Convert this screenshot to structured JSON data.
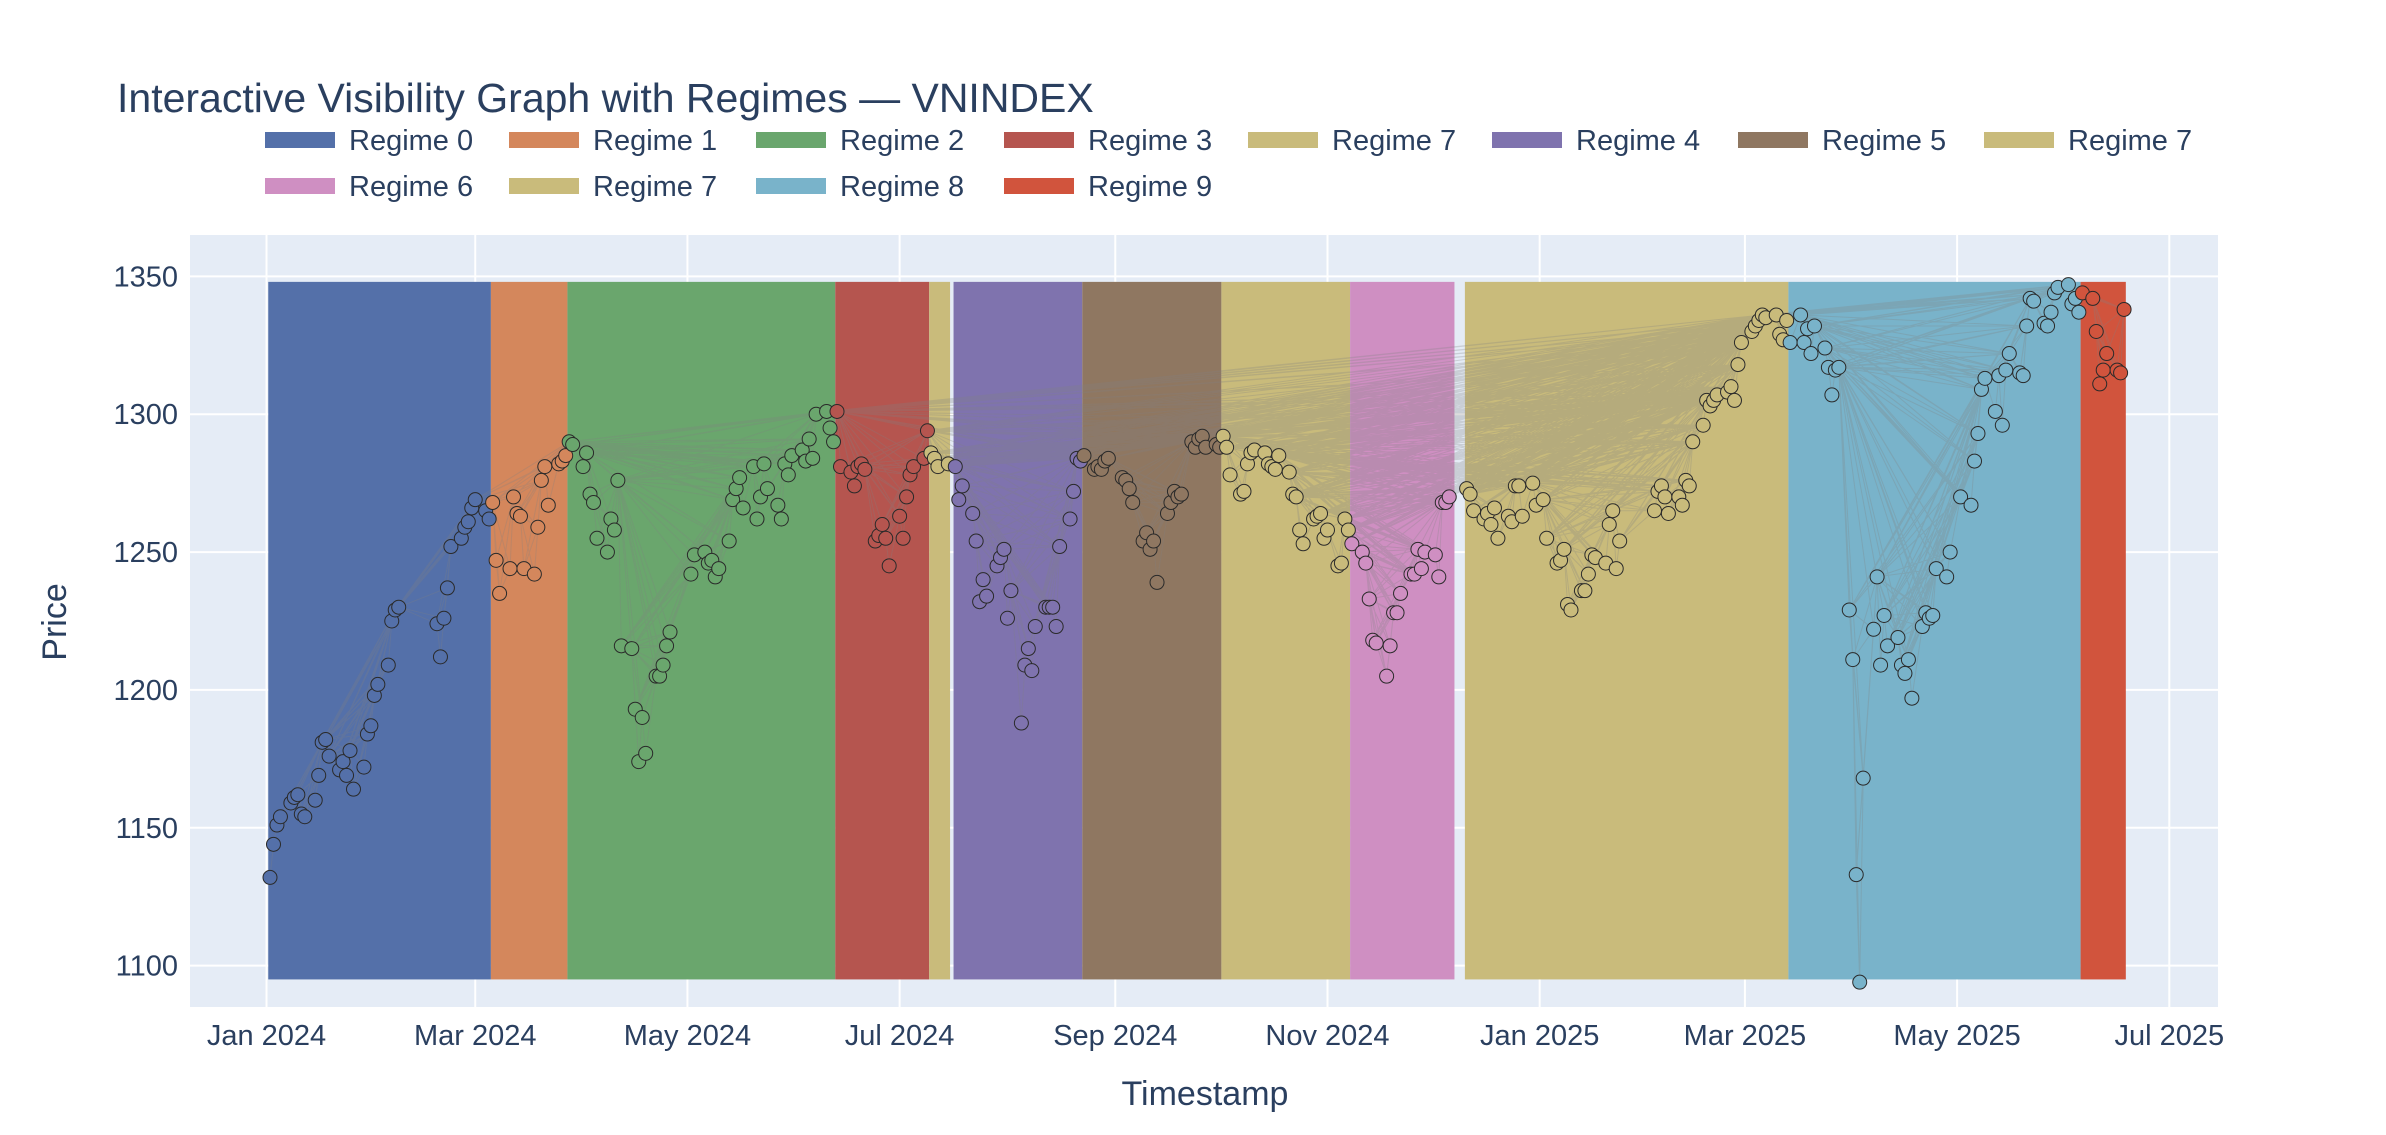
{
  "chart_data": {
    "type": "scatter",
    "title": "Interactive Visibility Graph with Regimes — VNINDEX",
    "xlabel": "Timestamp",
    "ylabel": "Price",
    "xlim": [
      "2023-12-10",
      "2025-07-15"
    ],
    "ylim": [
      1085,
      1365
    ],
    "x_ticks": [
      "2024-01-01",
      "2024-03-01",
      "2024-05-01",
      "2024-07-01",
      "2024-09-01",
      "2024-11-01",
      "2025-01-01",
      "2025-03-01",
      "2025-05-01",
      "2025-07-01"
    ],
    "x_tick_labels": [
      "Jan 2024",
      "Mar 2024",
      "May 2024",
      "Jul 2024",
      "Sep 2024",
      "Nov 2024",
      "Jan 2025",
      "Mar 2025",
      "May 2025",
      "Jul 2025"
    ],
    "y_ticks": [
      1100,
      1150,
      1200,
      1250,
      1300,
      1350
    ],
    "band_range": [
      1095,
      1348
    ],
    "legend_position": "top",
    "grid": true,
    "colors": {
      "plot_bg": "#e5ecf6",
      "grid": "#ffffff",
      "text": "#2a3f5f",
      "edge": "#808080",
      "marker_outline": "#2a2a2a"
    },
    "regimes": [
      {
        "name": "Regime 0",
        "color": "#5470a9",
        "start": "2024-01-02",
        "end": "2024-03-05"
      },
      {
        "name": "Regime 1",
        "color": "#d4875c",
        "start": "2024-03-06",
        "end": "2024-03-27"
      },
      {
        "name": "Regime 2",
        "color": "#6aa66d",
        "start": "2024-03-28",
        "end": "2024-06-12"
      },
      {
        "name": "Regime 3",
        "color": "#b5554f",
        "start": "2024-06-13",
        "end": "2024-07-09"
      },
      {
        "name": "Regime 7",
        "color": "#c9bb7b",
        "start": "2024-07-10",
        "end": "2024-07-15"
      },
      {
        "name": "Regime 4",
        "color": "#7f73ae",
        "start": "2024-07-17",
        "end": "2024-08-22"
      },
      {
        "name": "Regime 5",
        "color": "#8f7761",
        "start": "2024-08-23",
        "end": "2024-10-01"
      },
      {
        "name": "Regime 7",
        "color": "#c9bb7b",
        "start": "2024-10-02",
        "end": "2024-11-07"
      },
      {
        "name": "Regime 6",
        "color": "#cf8fc2",
        "start": "2024-11-08",
        "end": "2024-12-07"
      },
      {
        "name": "Regime 7",
        "color": "#c9bb7b",
        "start": "2024-12-11",
        "end": "2025-03-13"
      },
      {
        "name": "Regime 8",
        "color": "#79b3ca",
        "start": "2025-03-14",
        "end": "2025-06-05"
      },
      {
        "name": "Regime 9",
        "color": "#d1543d",
        "start": "2025-06-06",
        "end": "2025-06-18"
      }
    ],
    "series": [
      {
        "name": "Regime 0",
        "color": "#5470a9",
        "x": [
          "2024-01-02",
          "2024-01-03",
          "2024-01-04",
          "2024-01-05",
          "2024-01-08",
          "2024-01-09",
          "2024-01-10",
          "2024-01-11",
          "2024-01-12",
          "2024-01-15",
          "2024-01-16",
          "2024-01-17",
          "2024-01-18",
          "2024-01-19",
          "2024-01-22",
          "2024-01-23",
          "2024-01-24",
          "2024-01-25",
          "2024-01-26",
          "2024-01-29",
          "2024-01-30",
          "2024-01-31",
          "2024-02-01",
          "2024-02-02",
          "2024-02-05",
          "2024-02-06",
          "2024-02-07",
          "2024-02-08",
          "2024-02-19",
          "2024-02-20",
          "2024-02-21",
          "2024-02-22",
          "2024-02-23",
          "2024-02-26",
          "2024-02-27",
          "2024-02-28",
          "2024-02-29",
          "2024-03-01",
          "2024-03-04",
          "2024-03-05"
        ],
        "y": [
          1132,
          1144,
          1151,
          1154,
          1159,
          1161,
          1162,
          1155,
          1154,
          1160,
          1169,
          1181,
          1182,
          1176,
          1171,
          1174,
          1169,
          1178,
          1164,
          1172,
          1184,
          1187,
          1198,
          1202,
          1209,
          1225,
          1229,
          1230,
          1224,
          1212,
          1226,
          1237,
          1252,
          1255,
          1259,
          1261,
          1266,
          1269,
          1265,
          1262
        ]
      },
      {
        "name": "Regime 1",
        "color": "#d4875c",
        "x": [
          "2024-03-06",
          "2024-03-07",
          "2024-03-08",
          "2024-03-11",
          "2024-03-12",
          "2024-03-13",
          "2024-03-14",
          "2024-03-15",
          "2024-03-18",
          "2024-03-19",
          "2024-03-20",
          "2024-03-21",
          "2024-03-22",
          "2024-03-25",
          "2024-03-26",
          "2024-03-27"
        ],
        "y": [
          1268,
          1247,
          1235,
          1244,
          1270,
          1264,
          1263,
          1244,
          1242,
          1259,
          1276,
          1281,
          1267,
          1282,
          1283,
          1285
        ]
      },
      {
        "name": "Regime 2",
        "color": "#6aa66d",
        "x": [
          "2024-03-28",
          "2024-03-29",
          "2024-04-01",
          "2024-04-02",
          "2024-04-03",
          "2024-04-04",
          "2024-04-05",
          "2024-04-08",
          "2024-04-09",
          "2024-04-10",
          "2024-04-11",
          "2024-04-12",
          "2024-04-15",
          "2024-04-16",
          "2024-04-17",
          "2024-04-18",
          "2024-04-19",
          "2024-04-22",
          "2024-04-23",
          "2024-04-24",
          "2024-04-25",
          "2024-04-26",
          "2024-05-02",
          "2024-05-03",
          "2024-05-06",
          "2024-05-07",
          "2024-05-08",
          "2024-05-09",
          "2024-05-10",
          "2024-05-13",
          "2024-05-14",
          "2024-05-15",
          "2024-05-16",
          "2024-05-17",
          "2024-05-20",
          "2024-05-21",
          "2024-05-22",
          "2024-05-23",
          "2024-05-24",
          "2024-05-27",
          "2024-05-28",
          "2024-05-29",
          "2024-05-30",
          "2024-05-31",
          "2024-06-03",
          "2024-06-04",
          "2024-06-05",
          "2024-06-06",
          "2024-06-07",
          "2024-06-10",
          "2024-06-11",
          "2024-06-12"
        ],
        "y": [
          1290,
          1289,
          1281,
          1286,
          1271,
          1268,
          1255,
          1250,
          1262,
          1258,
          1276,
          1216,
          1215,
          1193,
          1174,
          1190,
          1177,
          1205,
          1205,
          1209,
          1216,
          1221,
          1242,
          1249,
          1250,
          1246,
          1247,
          1241,
          1244,
          1254,
          1269,
          1273,
          1277,
          1266,
          1281,
          1262,
          1270,
          1282,
          1273,
          1267,
          1262,
          1282,
          1278,
          1285,
          1287,
          1283,
          1291,
          1284,
          1300,
          1301,
          1295,
          1290
        ]
      },
      {
        "name": "Regime 3",
        "color": "#b5554f",
        "x": [
          "2024-06-13",
          "2024-06-14",
          "2024-06-17",
          "2024-06-18",
          "2024-06-19",
          "2024-06-20",
          "2024-06-21",
          "2024-06-24",
          "2024-06-25",
          "2024-06-26",
          "2024-06-27",
          "2024-06-28",
          "2024-07-01",
          "2024-07-02",
          "2024-07-03",
          "2024-07-04",
          "2024-07-05",
          "2024-07-08",
          "2024-07-09"
        ],
        "y": [
          1301,
          1281,
          1279,
          1274,
          1281,
          1282,
          1280,
          1254,
          1256,
          1260,
          1255,
          1245,
          1263,
          1255,
          1270,
          1278,
          1281,
          1284,
          1294
        ]
      },
      {
        "name": "Regime 7",
        "color": "#c9bb7b",
        "x": [
          "2024-07-10",
          "2024-07-11",
          "2024-07-12",
          "2024-07-15"
        ],
        "y": [
          1286,
          1284,
          1281,
          1282
        ]
      },
      {
        "name": "Regime 4",
        "color": "#7f73ae",
        "x": [
          "2024-07-17",
          "2024-07-18",
          "2024-07-19",
          "2024-07-22",
          "2024-07-23",
          "2024-07-24",
          "2024-07-25",
          "2024-07-26",
          "2024-07-29",
          "2024-07-30",
          "2024-07-31",
          "2024-08-01",
          "2024-08-02",
          "2024-08-05",
          "2024-08-06",
          "2024-08-07",
          "2024-08-08",
          "2024-08-09",
          "2024-08-12",
          "2024-08-13",
          "2024-08-14",
          "2024-08-15",
          "2024-08-16",
          "2024-08-19",
          "2024-08-20",
          "2024-08-21",
          "2024-08-22"
        ],
        "y": [
          1281,
          1269,
          1274,
          1264,
          1254,
          1232,
          1240,
          1234,
          1245,
          1248,
          1251,
          1226,
          1236,
          1188,
          1209,
          1215,
          1207,
          1223,
          1230,
          1230,
          1230,
          1223,
          1252,
          1262,
          1272,
          1284,
          1283
        ]
      },
      {
        "name": "Regime 5",
        "color": "#8f7761",
        "x": [
          "2024-08-23",
          "2024-08-26",
          "2024-08-27",
          "2024-08-28",
          "2024-08-29",
          "2024-08-30",
          "2024-09-03",
          "2024-09-04",
          "2024-09-05",
          "2024-09-06",
          "2024-09-09",
          "2024-09-10",
          "2024-09-11",
          "2024-09-12",
          "2024-09-13",
          "2024-09-16",
          "2024-09-17",
          "2024-09-18",
          "2024-09-19",
          "2024-09-20",
          "2024-09-23",
          "2024-09-24",
          "2024-09-25",
          "2024-09-26",
          "2024-09-27",
          "2024-09-30",
          "2024-10-01"
        ],
        "y": [
          1285,
          1280,
          1281,
          1280,
          1283,
          1284,
          1277,
          1276,
          1273,
          1268,
          1254,
          1257,
          1251,
          1254,
          1239,
          1264,
          1268,
          1272,
          1270,
          1271,
          1290,
          1288,
          1291,
          1292,
          1288,
          1289,
          1288
        ]
      },
      {
        "name": "Regime 7",
        "color": "#c9bb7b",
        "x": [
          "2024-10-02",
          "2024-10-03",
          "2024-10-04",
          "2024-10-07",
          "2024-10-08",
          "2024-10-09",
          "2024-10-10",
          "2024-10-11",
          "2024-10-14",
          "2024-10-15",
          "2024-10-16",
          "2024-10-17",
          "2024-10-18",
          "2024-10-21",
          "2024-10-22",
          "2024-10-23",
          "2024-10-24",
          "2024-10-25",
          "2024-10-28",
          "2024-10-29",
          "2024-10-30",
          "2024-10-31",
          "2024-11-01",
          "2024-11-04",
          "2024-11-05",
          "2024-11-06",
          "2024-11-07"
        ],
        "y": [
          1292,
          1288,
          1278,
          1271,
          1272,
          1282,
          1286,
          1287,
          1286,
          1282,
          1281,
          1280,
          1285,
          1279,
          1271,
          1270,
          1258,
          1253,
          1262,
          1263,
          1264,
          1255,
          1258,
          1245,
          1246,
          1262,
          1258
        ]
      },
      {
        "name": "Regime 6",
        "color": "#cf8fc2",
        "x": [
          "2024-11-08",
          "2024-11-11",
          "2024-11-12",
          "2024-11-13",
          "2024-11-14",
          "2024-11-15",
          "2024-11-18",
          "2024-11-19",
          "2024-11-20",
          "2024-11-21",
          "2024-11-22",
          "2024-11-25",
          "2024-11-26",
          "2024-11-27",
          "2024-11-28",
          "2024-11-29",
          "2024-12-02",
          "2024-12-03",
          "2024-12-04",
          "2024-12-05",
          "2024-12-06"
        ],
        "y": [
          1253,
          1250,
          1246,
          1233,
          1218,
          1217,
          1205,
          1216,
          1228,
          1228,
          1235,
          1242,
          1242,
          1251,
          1244,
          1250,
          1249,
          1241,
          1268,
          1268,
          1270
        ]
      },
      {
        "name": "Regime 7",
        "color": "#c9bb7b",
        "x": [
          "2024-12-11",
          "2024-12-12",
          "2024-12-13",
          "2024-12-16",
          "2024-12-17",
          "2024-12-18",
          "2024-12-19",
          "2024-12-20",
          "2024-12-23",
          "2024-12-24",
          "2024-12-25",
          "2024-12-26",
          "2024-12-27",
          "2024-12-30",
          "2024-12-31",
          "2025-01-02",
          "2025-01-03",
          "2025-01-06",
          "2025-01-07",
          "2025-01-08",
          "2025-01-09",
          "2025-01-10",
          "2025-01-13",
          "2025-01-14",
          "2025-01-15",
          "2025-01-16",
          "2025-01-17",
          "2025-01-20",
          "2025-01-21",
          "2025-01-22",
          "2025-01-23",
          "2025-01-24",
          "2025-02-03",
          "2025-02-04",
          "2025-02-05",
          "2025-02-06",
          "2025-02-07",
          "2025-02-10",
          "2025-02-11",
          "2025-02-12",
          "2025-02-13",
          "2025-02-14",
          "2025-02-17",
          "2025-02-18",
          "2025-02-19",
          "2025-02-20",
          "2025-02-21",
          "2025-02-24",
          "2025-02-25",
          "2025-02-26",
          "2025-02-27",
          "2025-02-28",
          "2025-03-03",
          "2025-03-04",
          "2025-03-05",
          "2025-03-06",
          "2025-03-07",
          "2025-03-10",
          "2025-03-11",
          "2025-03-12",
          "2025-03-13"
        ],
        "y": [
          1273,
          1271,
          1265,
          1262,
          1264,
          1260,
          1266,
          1255,
          1263,
          1261,
          1274,
          1274,
          1263,
          1275,
          1267,
          1269,
          1255,
          1246,
          1247,
          1251,
          1231,
          1229,
          1236,
          1236,
          1242,
          1249,
          1248,
          1246,
          1260,
          1265,
          1244,
          1254,
          1265,
          1272,
          1274,
          1270,
          1264,
          1270,
          1267,
          1276,
          1274,
          1290,
          1296,
          1305,
          1303,
          1305,
          1307,
          1308,
          1310,
          1305,
          1318,
          1326,
          1330,
          1332,
          1334,
          1336,
          1335,
          1336,
          1329,
          1327,
          1334
        ]
      },
      {
        "name": "Regime 8",
        "color": "#79b3ca",
        "x": [
          "2025-03-14",
          "2025-03-17",
          "2025-03-18",
          "2025-03-19",
          "2025-03-20",
          "2025-03-21",
          "2025-03-24",
          "2025-03-25",
          "2025-03-26",
          "2025-03-27",
          "2025-03-28",
          "2025-03-31",
          "2025-04-01",
          "2025-04-02",
          "2025-04-03",
          "2025-04-04",
          "2025-04-07",
          "2025-04-08",
          "2025-04-09",
          "2025-04-10",
          "2025-04-11",
          "2025-04-14",
          "2025-04-15",
          "2025-04-16",
          "2025-04-17",
          "2025-04-18",
          "2025-04-21",
          "2025-04-22",
          "2025-04-23",
          "2025-04-24",
          "2025-04-25",
          "2025-04-28",
          "2025-04-29",
          "2025-05-02",
          "2025-05-05",
          "2025-05-06",
          "2025-05-07",
          "2025-05-08",
          "2025-05-09",
          "2025-05-12",
          "2025-05-13",
          "2025-05-14",
          "2025-05-15",
          "2025-05-16",
          "2025-05-19",
          "2025-05-20",
          "2025-05-21",
          "2025-05-22",
          "2025-05-23",
          "2025-05-26",
          "2025-05-27",
          "2025-05-28",
          "2025-05-29",
          "2025-05-30",
          "2025-06-02",
          "2025-06-03",
          "2025-06-04",
          "2025-06-05"
        ],
        "y": [
          1326,
          1336,
          1326,
          1331,
          1322,
          1332,
          1324,
          1317,
          1307,
          1316,
          1317,
          1229,
          1211,
          1133,
          1094,
          1168,
          1222,
          1241,
          1209,
          1227,
          1216,
          1219,
          1209,
          1206,
          1211,
          1197,
          1223,
          1228,
          1226,
          1227,
          1244,
          1241,
          1250,
          1270,
          1267,
          1283,
          1293,
          1309,
          1313,
          1301,
          1314,
          1296,
          1316,
          1322,
          1315,
          1314,
          1332,
          1342,
          1341,
          1333,
          1332,
          1337,
          1344,
          1346,
          1347,
          1340,
          1342,
          1337
        ]
      },
      {
        "name": "Regime 9",
        "color": "#d1543d",
        "x": [
          "2025-06-06",
          "2025-06-09",
          "2025-06-10",
          "2025-06-11",
          "2025-06-12",
          "2025-06-13",
          "2025-06-16",
          "2025-06-17",
          "2025-06-18"
        ],
        "y": [
          1344,
          1342,
          1330,
          1311,
          1316,
          1322,
          1316,
          1315,
          1338
        ]
      }
    ]
  }
}
